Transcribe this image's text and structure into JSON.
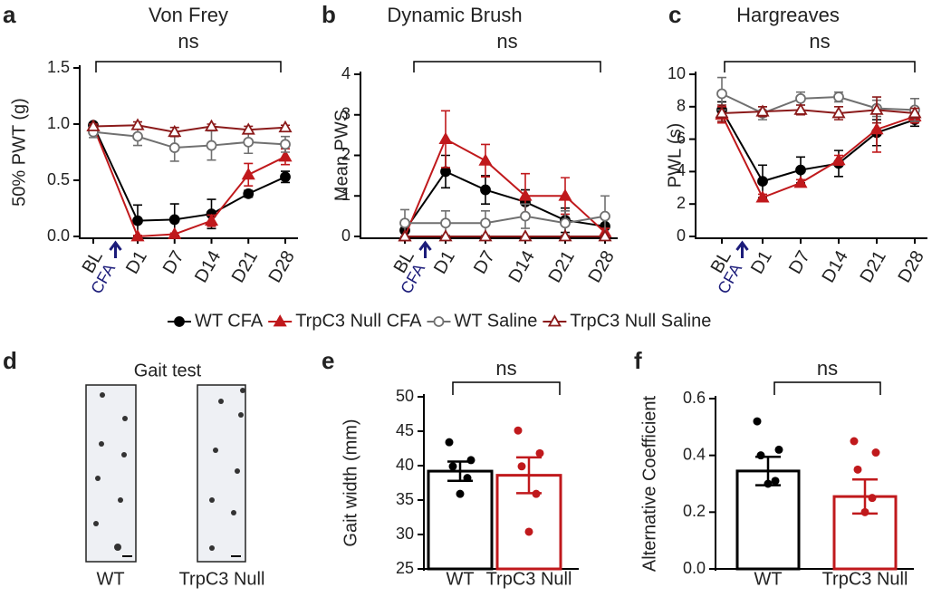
{
  "chart_data": [
    {
      "type": "line",
      "panel": "a",
      "title": "Von Frey",
      "annotation": "ns",
      "arrow_label": "CFA",
      "ylabel": "50% PWT (g)",
      "categories": [
        "BL",
        "D1",
        "D7",
        "D14",
        "D21",
        "D28"
      ],
      "ylim": [
        0,
        1.5
      ],
      "yticks": [
        {
          "value": 0,
          "label": "0.0"
        },
        0.5,
        {
          "value": 1,
          "label": "1.0"
        },
        1.5
      ],
      "series": [
        {
          "name": "WT CFA",
          "color": "#000000",
          "marker": "circle",
          "filled": true,
          "values": [
            0.99,
            0.14,
            0.15,
            0.2,
            0.38,
            0.53
          ],
          "errors": [
            0.02,
            0.14,
            0.14,
            0.13,
            0.03,
            0.05
          ]
        },
        {
          "name": "TrpC3 Null CFA",
          "color": "#c0191c",
          "marker": "triangle",
          "filled": true,
          "values": [
            0.98,
            0.0,
            0.02,
            0.14,
            0.55,
            0.71
          ],
          "errors": [
            0.02,
            0.01,
            0.01,
            0.05,
            0.1,
            0.07
          ]
        },
        {
          "name": "WT Saline",
          "color": "#707070",
          "marker": "circle",
          "filled": false,
          "values": [
            0.93,
            0.89,
            0.79,
            0.81,
            0.84,
            0.82
          ],
          "errors": [
            0.05,
            0.08,
            0.12,
            0.13,
            0.1,
            0.07
          ]
        },
        {
          "name": "TrpC3 Null Saline",
          "color": "#8b1a1a",
          "marker": "triangle",
          "filled": false,
          "values": [
            0.98,
            0.99,
            0.93,
            0.98,
            0.95,
            0.97
          ],
          "errors": [
            0.02,
            0.03,
            0.04,
            0.02,
            0.03,
            0.02
          ]
        }
      ]
    },
    {
      "type": "line",
      "panel": "b",
      "title": "Dynamic Brush",
      "annotation": "ns",
      "arrow_label": "CFA",
      "ylabel": "Mean PWS",
      "categories": [
        "BL",
        "D1",
        "D7",
        "D14",
        "D21",
        "D28"
      ],
      "ylim": [
        0,
        4
      ],
      "yticks": [
        0,
        1,
        2,
        3,
        4
      ],
      "series": [
        {
          "color": "#000000",
          "marker": "circle",
          "filled": true,
          "values": [
            0.15,
            1.6,
            1.15,
            0.85,
            0.4,
            0.25
          ],
          "errors": [
            0.15,
            0.4,
            0.35,
            0.3,
            0.3,
            0.2
          ]
        },
        {
          "color": "#c0191c",
          "marker": "triangle",
          "filled": true,
          "values": [
            0.0,
            2.4,
            1.87,
            1.0,
            1.0,
            0.1
          ],
          "errors": [
            0.0,
            0.7,
            0.4,
            0.55,
            0.45,
            0.1
          ]
        },
        {
          "color": "#707070",
          "marker": "circle",
          "filled": false,
          "values": [
            0.33,
            0.33,
            0.33,
            0.5,
            0.33,
            0.5
          ],
          "errors": [
            0.33,
            0.3,
            0.3,
            0.3,
            0.3,
            0.5
          ]
        },
        {
          "color": "#8b1a1a",
          "marker": "triangle",
          "filled": false,
          "values": [
            0,
            0,
            0,
            0,
            0,
            0
          ],
          "errors": [
            0,
            0,
            0,
            0,
            0,
            0
          ]
        }
      ]
    },
    {
      "type": "line",
      "panel": "c",
      "title": "Hargreaves",
      "annotation": "ns",
      "arrow_label": "CFA",
      "ylabel": "PWL (s)",
      "categories": [
        "BL",
        "D1",
        "D7",
        "D14",
        "D21",
        "D28"
      ],
      "ylim": [
        0,
        10
      ],
      "yticks": [
        0,
        2,
        4,
        6,
        8,
        10
      ],
      "series": [
        {
          "color": "#000000",
          "marker": "circle",
          "filled": true,
          "values": [
            7.8,
            3.4,
            4.1,
            4.5,
            6.4,
            7.2
          ],
          "errors": [
            0.5,
            1.0,
            0.8,
            0.8,
            0.8,
            0.4
          ]
        },
        {
          "color": "#c0191c",
          "marker": "triangle",
          "filled": true,
          "values": [
            7.5,
            2.4,
            3.3,
            4.7,
            6.6,
            7.4
          ],
          "errors": [
            0.5,
            0.2,
            0.2,
            0.3,
            1.4,
            0.4
          ]
        },
        {
          "color": "#707070",
          "marker": "circle",
          "filled": false,
          "values": [
            8.8,
            7.6,
            8.5,
            8.6,
            7.9,
            7.8
          ],
          "errors": [
            1.0,
            0.4,
            0.4,
            0.3,
            0.5,
            0.7
          ]
        },
        {
          "color": "#8b1a1a",
          "marker": "triangle",
          "filled": false,
          "values": [
            7.6,
            7.7,
            7.8,
            7.6,
            7.8,
            7.6
          ],
          "errors": [
            0.5,
            0.3,
            0.3,
            0.4,
            0.8,
            0.3
          ]
        }
      ]
    },
    {
      "type": "bar",
      "panel": "e",
      "annotation": "ns",
      "ylabel": "Gait width (mm)",
      "categories": [
        "WT",
        "TrpC3 Null"
      ],
      "colors": [
        "#000000",
        "#c0191c"
      ],
      "values": [
        39.2,
        38.6
      ],
      "errors": [
        1.4,
        2.6
      ],
      "points": [
        [
          43.4,
          40.8,
          39.9,
          38.2,
          35.9
        ],
        [
          45.1,
          41.8,
          39.9,
          35.9,
          30.4
        ]
      ],
      "ylim": [
        25,
        50
      ],
      "yticks": [
        25,
        30,
        35,
        40,
        45,
        50
      ]
    },
    {
      "type": "bar",
      "panel": "f",
      "annotation": "ns",
      "ylabel": "Alternative Coefficient",
      "categories": [
        "WT",
        "TrpC3 Null"
      ],
      "colors": [
        "#000000",
        "#c0191c"
      ],
      "values": [
        0.345,
        0.255
      ],
      "errors": [
        0.05,
        0.06
      ],
      "points": [
        [
          0.52,
          0.42,
          0.4,
          0.31,
          0.3
        ],
        [
          0.45,
          0.41,
          0.35,
          0.25,
          0.2
        ]
      ],
      "ylim": [
        0,
        0.6
      ],
      "yticks": [
        {
          "value": 0,
          "label": "0.0"
        },
        0.2,
        0.4,
        0.6
      ]
    }
  ],
  "gait_panel": {
    "panel": "d",
    "title": "Gait test",
    "labels": [
      "WT",
      "TrpC3 Null"
    ]
  }
}
